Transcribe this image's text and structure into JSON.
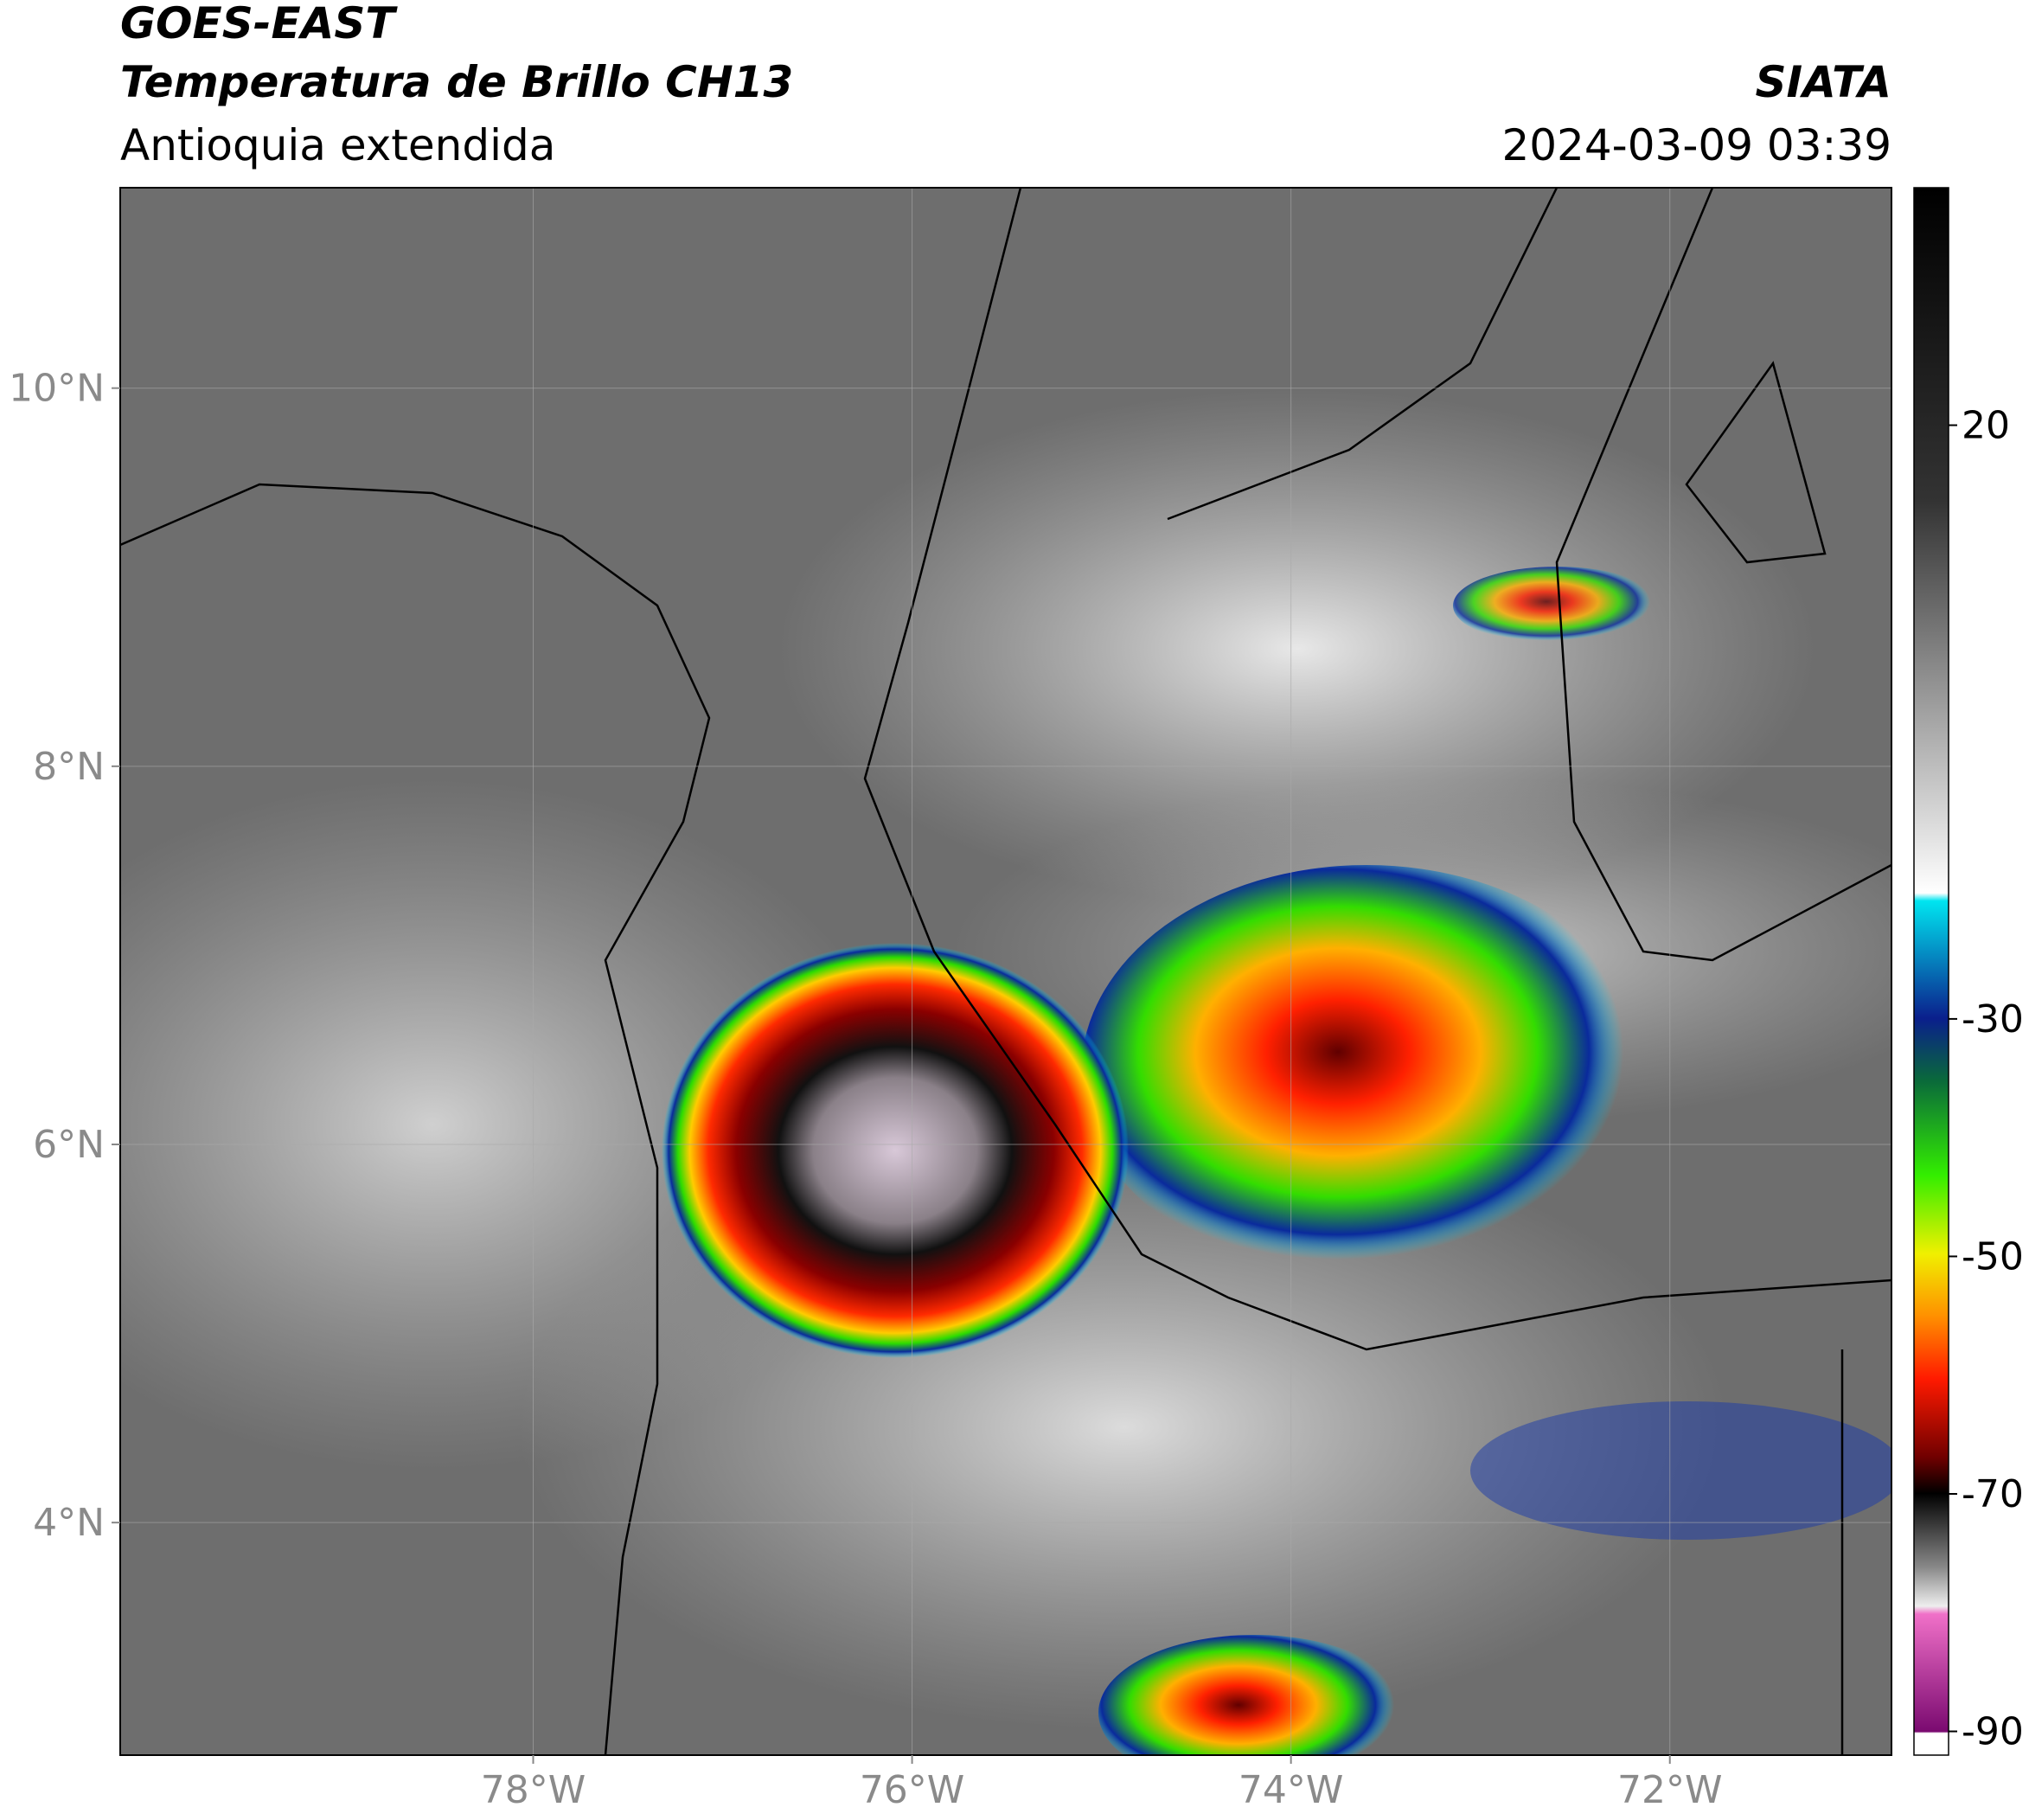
{
  "header": {
    "satellite": "GOES-EAST",
    "product": "Temperatura de Brillo CH13",
    "region": "Antioquia extendida",
    "source": "SIATA",
    "timestamp": "2024-03-09 03:39"
  },
  "map": {
    "xlim": [
      -80.18,
      -70.83
    ],
    "ylim": [
      2.77,
      11.06
    ],
    "xticks": [
      {
        "value": -78,
        "label": "78°W"
      },
      {
        "value": -76,
        "label": "76°W"
      },
      {
        "value": -74,
        "label": "74°W"
      },
      {
        "value": -72,
        "label": "72°W"
      }
    ],
    "yticks": [
      {
        "value": 4,
        "label": "4°N"
      },
      {
        "value": 6,
        "label": "6°N"
      },
      {
        "value": 8,
        "label": "8°N"
      },
      {
        "value": 10,
        "label": "10°N"
      }
    ],
    "grid": true
  },
  "colorbar": {
    "lim": [
      -92,
      40
    ],
    "ticks": [
      20,
      -30,
      -50,
      -70,
      -90
    ]
  }
}
